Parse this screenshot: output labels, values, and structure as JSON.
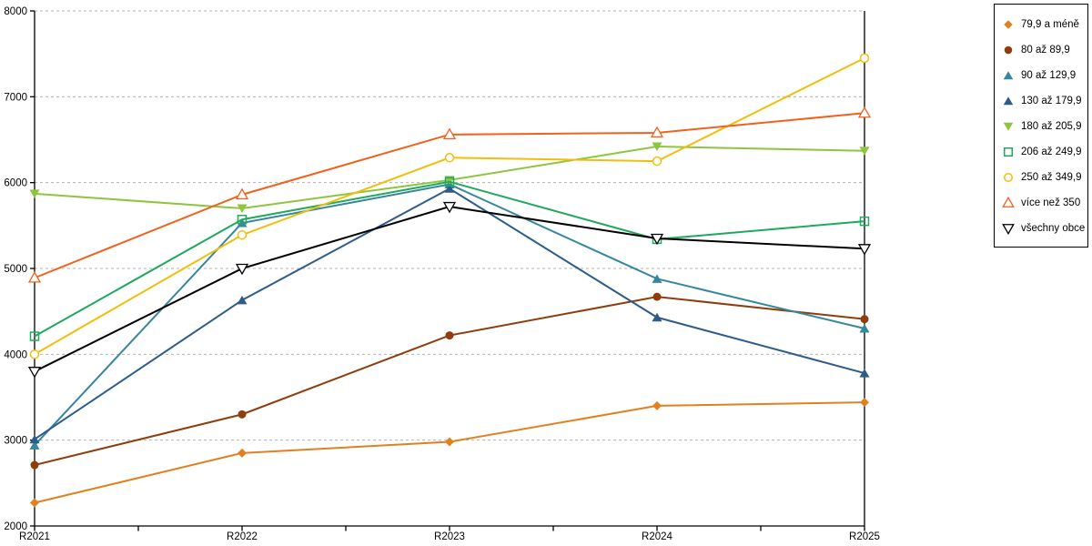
{
  "chart_data": {
    "type": "line",
    "title": "",
    "xlabel": "",
    "ylabel": "",
    "categories": [
      "R2021",
      "R2022",
      "R2023",
      "R2024",
      "R2025"
    ],
    "ylim": [
      2000,
      8000
    ],
    "ytick_labels": [
      "2000",
      "3000",
      "4000",
      "5000",
      "6000",
      "7000",
      "8000"
    ],
    "grid": "horizontal-dashed",
    "gridline_color": "#b3b3b3",
    "axis_color": "#000000",
    "legend_position": "outside-top-right",
    "series": [
      {
        "name": "79,9 a méně",
        "marker": "diamond",
        "color": "#E2801F",
        "values": [
          2270,
          2850,
          2980,
          3400,
          3440
        ]
      },
      {
        "name": "80 až 89,9",
        "marker": "circle",
        "color": "#8E3D0C",
        "values": [
          2710,
          3300,
          4220,
          4670,
          4410
        ]
      },
      {
        "name": "90 až 129,9",
        "marker": "triangle-up",
        "color": "#35879E",
        "values": [
          2940,
          5530,
          5980,
          4880,
          4300
        ]
      },
      {
        "name": "130 až 179,9",
        "marker": "triangle-up",
        "color": "#2E5C8A",
        "values": [
          3010,
          4630,
          5930,
          4430,
          3780
        ]
      },
      {
        "name": "180 až 205,9",
        "marker": "triangle-down",
        "color": "#8DC63E",
        "values": [
          5870,
          5700,
          6030,
          6420,
          6370
        ]
      },
      {
        "name": "206 až 249,9",
        "marker": "square-open",
        "color": "#1FA95F",
        "values": [
          4210,
          5570,
          6010,
          5340,
          5550
        ]
      },
      {
        "name": "250 až 349,9",
        "marker": "circle-open",
        "color": "#F2BE0D",
        "values": [
          4000,
          5390,
          6290,
          6250,
          7450
        ]
      },
      {
        "name": "více než 350",
        "marker": "triangle-up-open",
        "color": "#F2611C",
        "values": [
          4890,
          5860,
          6560,
          6580,
          6810
        ]
      },
      {
        "name": "všechny obce",
        "marker": "triangle-down-open",
        "color": "#000000",
        "values": [
          3800,
          5000,
          5720,
          5350,
          5230
        ]
      }
    ]
  }
}
